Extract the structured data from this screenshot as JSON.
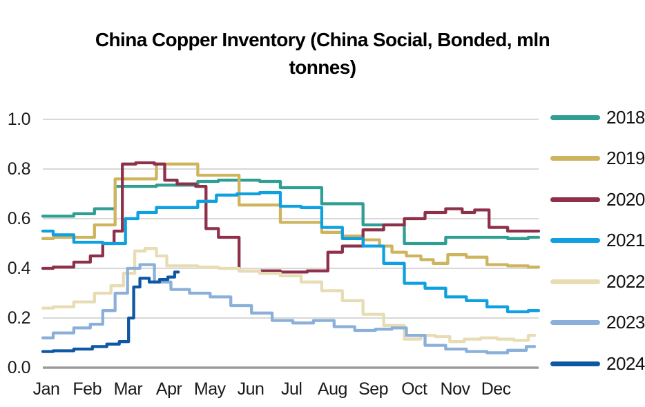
{
  "title_lines": [
    "China Copper Inventory (China Social, Bonded, mln",
    "tonnes)"
  ],
  "chart_data": {
    "type": "line",
    "title": "China Copper Inventory (China Social, Bonded, mln tonnes)",
    "xlabel": "",
    "ylabel": "",
    "grid": true,
    "legend_position": "right",
    "x_axis": {
      "unit": "month",
      "range": [
        0,
        12
      ],
      "tick_labels": [
        "Jan",
        "Feb",
        "Mar",
        "Apr",
        "May",
        "Jun",
        "Jul",
        "Aug",
        "Sep",
        "Oct",
        "Nov",
        "Dec"
      ]
    },
    "y_axis": {
      "range": [
        0.0,
        1.0
      ],
      "ticks": [
        {
          "label": "1.0",
          "value": 1.0
        },
        {
          "label": "0.8",
          "value": 0.8
        },
        {
          "label": "0.6",
          "value": 0.6
        },
        {
          "label": "0.4",
          "value": 0.4
        },
        {
          "label": "0.2",
          "value": 0.2
        },
        {
          "label": "0.0",
          "value": 0.0
        }
      ]
    },
    "colors": {
      "gridline": "#cccccc",
      "zero_axis": "#9b9b9b",
      "text": "#1a1a1a"
    },
    "series": [
      {
        "name": "2018",
        "color": "#2f9e93",
        "points": [
          [
            0,
            0.61
          ],
          [
            0.5,
            0.61
          ],
          [
            1,
            0.62
          ],
          [
            1.5,
            0.64
          ],
          [
            2,
            0.73
          ],
          [
            2.5,
            0.73
          ],
          [
            3,
            0.735
          ],
          [
            3.5,
            0.735
          ],
          [
            4,
            0.75
          ],
          [
            4.5,
            0.755
          ],
          [
            5,
            0.755
          ],
          [
            5.5,
            0.75
          ],
          [
            6,
            0.725
          ],
          [
            6.5,
            0.725
          ],
          [
            7,
            0.66
          ],
          [
            7.5,
            0.66
          ],
          [
            8,
            0.575
          ],
          [
            8.5,
            0.575
          ],
          [
            9,
            0.5
          ],
          [
            9.5,
            0.5
          ],
          [
            10,
            0.525
          ],
          [
            10.5,
            0.525
          ],
          [
            11,
            0.525
          ],
          [
            11.5,
            0.52
          ],
          [
            12,
            0.525
          ]
        ]
      },
      {
        "name": "2019",
        "color": "#cfb45e",
        "points": [
          [
            0,
            0.52
          ],
          [
            0.5,
            0.525
          ],
          [
            1,
            0.525
          ],
          [
            1.5,
            0.575
          ],
          [
            2,
            0.76
          ],
          [
            2.5,
            0.76
          ],
          [
            3,
            0.82
          ],
          [
            3.5,
            0.82
          ],
          [
            4,
            0.775
          ],
          [
            4.5,
            0.775
          ],
          [
            5,
            0.655
          ],
          [
            5.5,
            0.655
          ],
          [
            6,
            0.585
          ],
          [
            6.5,
            0.585
          ],
          [
            7,
            0.545
          ],
          [
            7.5,
            0.53
          ],
          [
            8,
            0.515
          ],
          [
            8.3,
            0.49
          ],
          [
            8.6,
            0.465
          ],
          [
            9,
            0.45
          ],
          [
            9.3,
            0.435
          ],
          [
            9.6,
            0.42
          ],
          [
            10,
            0.455
          ],
          [
            10.5,
            0.445
          ],
          [
            11,
            0.415
          ],
          [
            11.5,
            0.41
          ],
          [
            12,
            0.405
          ]
        ]
      },
      {
        "name": "2020",
        "color": "#8e3049",
        "points": [
          [
            0,
            0.4
          ],
          [
            0.5,
            0.405
          ],
          [
            1,
            0.425
          ],
          [
            1.3,
            0.45
          ],
          [
            1.6,
            0.5
          ],
          [
            1.85,
            0.55
          ],
          [
            2,
            0.82
          ],
          [
            2.5,
            0.825
          ],
          [
            2.9,
            0.82
          ],
          [
            3,
            0.755
          ],
          [
            3.5,
            0.74
          ],
          [
            3.9,
            0.73
          ],
          [
            4,
            0.56
          ],
          [
            4.5,
            0.525
          ],
          [
            5,
            0.39
          ],
          [
            5.5,
            0.39
          ],
          [
            6,
            0.385
          ],
          [
            6.8,
            0.39
          ],
          [
            7,
            0.465
          ],
          [
            7.5,
            0.49
          ],
          [
            8,
            0.555
          ],
          [
            8.5,
            0.575
          ],
          [
            9,
            0.6
          ],
          [
            9.5,
            0.625
          ],
          [
            10,
            0.64
          ],
          [
            10.3,
            0.625
          ],
          [
            10.6,
            0.635
          ],
          [
            11,
            0.565
          ],
          [
            11.5,
            0.55
          ],
          [
            12,
            0.55
          ]
        ]
      },
      {
        "name": "2021",
        "color": "#0fa0e0",
        "points": [
          [
            0,
            0.55
          ],
          [
            0.5,
            0.535
          ],
          [
            1,
            0.505
          ],
          [
            1.9,
            0.5
          ],
          [
            2.1,
            0.6
          ],
          [
            2.5,
            0.625
          ],
          [
            3,
            0.645
          ],
          [
            3.5,
            0.645
          ],
          [
            4,
            0.67
          ],
          [
            4.4,
            0.695
          ],
          [
            5,
            0.7
          ],
          [
            5.5,
            0.705
          ],
          [
            6,
            0.65
          ],
          [
            6.5,
            0.645
          ],
          [
            7,
            0.565
          ],
          [
            7.5,
            0.52
          ],
          [
            8,
            0.49
          ],
          [
            8.5,
            0.42
          ],
          [
            9,
            0.34
          ],
          [
            9.5,
            0.32
          ],
          [
            10,
            0.285
          ],
          [
            10.5,
            0.27
          ],
          [
            11,
            0.245
          ],
          [
            11.5,
            0.225
          ],
          [
            12,
            0.23
          ]
        ]
      },
      {
        "name": "2022",
        "color": "#e7dcb3",
        "points": [
          [
            0,
            0.24
          ],
          [
            0.5,
            0.245
          ],
          [
            1,
            0.265
          ],
          [
            1.5,
            0.3
          ],
          [
            1.8,
            0.33
          ],
          [
            2.1,
            0.38
          ],
          [
            2.35,
            0.47
          ],
          [
            2.6,
            0.48
          ],
          [
            2.9,
            0.45
          ],
          [
            3.1,
            0.41
          ],
          [
            3.5,
            0.41
          ],
          [
            4,
            0.405
          ],
          [
            4.5,
            0.4
          ],
          [
            5,
            0.39
          ],
          [
            5.5,
            0.38
          ],
          [
            6,
            0.37
          ],
          [
            6.5,
            0.345
          ],
          [
            7,
            0.31
          ],
          [
            7.5,
            0.27
          ],
          [
            8,
            0.215
          ],
          [
            8.5,
            0.17
          ],
          [
            9,
            0.115
          ],
          [
            9.3,
            0.13
          ],
          [
            9.7,
            0.125
          ],
          [
            10,
            0.105
          ],
          [
            10.4,
            0.115
          ],
          [
            10.8,
            0.12
          ],
          [
            11.2,
            0.115
          ],
          [
            11.6,
            0.11
          ],
          [
            11.9,
            0.13
          ]
        ]
      },
      {
        "name": "2023",
        "color": "#8ab0d9",
        "points": [
          [
            0,
            0.12
          ],
          [
            0.5,
            0.14
          ],
          [
            1,
            0.16
          ],
          [
            1.3,
            0.175
          ],
          [
            1.6,
            0.23
          ],
          [
            1.9,
            0.3
          ],
          [
            2.2,
            0.4
          ],
          [
            2.5,
            0.415
          ],
          [
            2.9,
            0.345
          ],
          [
            3.3,
            0.315
          ],
          [
            3.8,
            0.3
          ],
          [
            4.3,
            0.285
          ],
          [
            4.8,
            0.25
          ],
          [
            5.3,
            0.22
          ],
          [
            5.8,
            0.19
          ],
          [
            6.3,
            0.18
          ],
          [
            6.8,
            0.19
          ],
          [
            7.3,
            0.165
          ],
          [
            7.8,
            0.15
          ],
          [
            8.3,
            0.155
          ],
          [
            8.6,
            0.16
          ],
          [
            9,
            0.13
          ],
          [
            9.5,
            0.09
          ],
          [
            10,
            0.075
          ],
          [
            10.5,
            0.065
          ],
          [
            11,
            0.06
          ],
          [
            11.5,
            0.07
          ],
          [
            11.9,
            0.085
          ]
        ]
      },
      {
        "name": "2024",
        "color": "#0d57a3",
        "points": [
          [
            0,
            0.065
          ],
          [
            0.5,
            0.068
          ],
          [
            1,
            0.075
          ],
          [
            1.4,
            0.085
          ],
          [
            1.7,
            0.095
          ],
          [
            2,
            0.105
          ],
          [
            2.15,
            0.2
          ],
          [
            2.25,
            0.325
          ],
          [
            2.45,
            0.36
          ],
          [
            2.7,
            0.345
          ],
          [
            2.95,
            0.355
          ],
          [
            3.1,
            0.365
          ],
          [
            3.28,
            0.385
          ]
        ]
      }
    ]
  }
}
